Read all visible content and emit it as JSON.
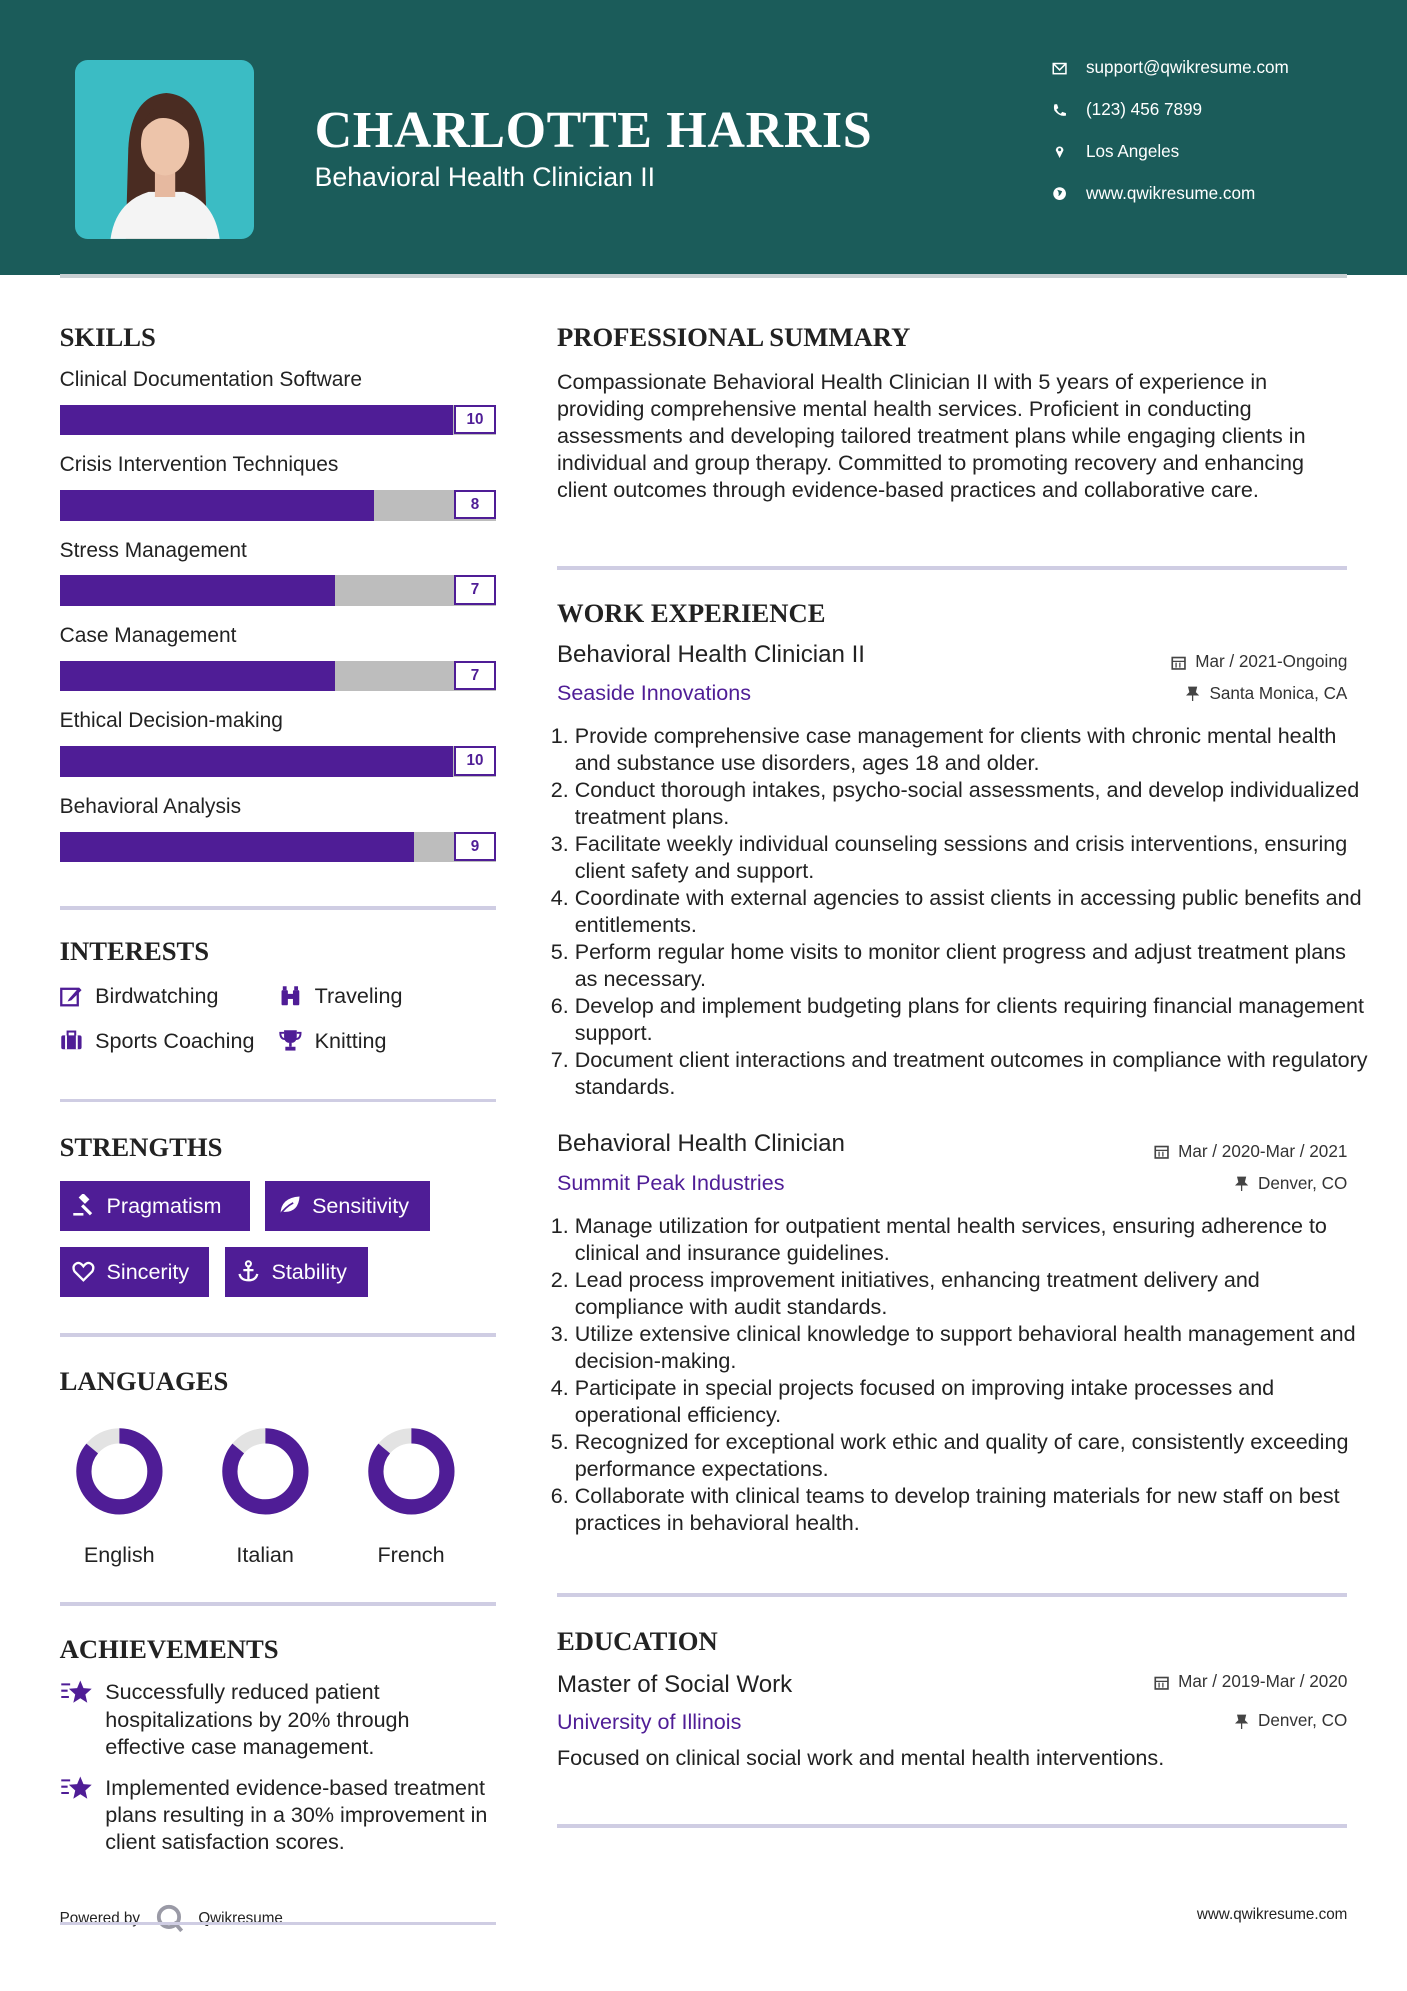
{
  "colors": {
    "header": "#1b5c5a",
    "accent": "#4f1d96",
    "photo_bg": "#3bbcc4"
  },
  "header": {
    "name": "CHARLOTTE HARRIS",
    "title": "Behavioral Health Clinician II",
    "contacts": [
      {
        "icon": "envelope-icon",
        "text": "support@qwikresume.com"
      },
      {
        "icon": "phone-icon",
        "text": "(123) 456 7899"
      },
      {
        "icon": "map-pin-icon",
        "text": "Los Angeles"
      },
      {
        "icon": "globe-icon",
        "text": "www.qwikresume.com"
      }
    ]
  },
  "skills": {
    "heading": "SKILLS",
    "items": [
      {
        "label": "Clinical Documentation Software",
        "value": 10,
        "max": 10
      },
      {
        "label": "Crisis Intervention Techniques",
        "value": 8,
        "max": 10
      },
      {
        "label": "Stress Management",
        "value": 7,
        "max": 10
      },
      {
        "label": "Case Management",
        "value": 7,
        "max": 10
      },
      {
        "label": "Ethical Decision-making",
        "value": 10,
        "max": 10
      },
      {
        "label": "Behavioral Analysis",
        "value": 9,
        "max": 10
      }
    ]
  },
  "interests": {
    "heading": "INTERESTS",
    "items": [
      {
        "label": "Birdwatching",
        "icon": "edit-icon"
      },
      {
        "label": "Traveling",
        "icon": "binoculars-icon"
      },
      {
        "label": "Sports Coaching",
        "icon": "briefcase-icon"
      },
      {
        "label": "Knitting",
        "icon": "trophy-icon"
      }
    ]
  },
  "strengths": {
    "heading": "STRENGTHS",
    "items": [
      {
        "label": "Pragmatism",
        "icon": "gavel-icon"
      },
      {
        "label": "Sensitivity",
        "icon": "leaf-icon"
      },
      {
        "label": "Sincerity",
        "icon": "heart-icon"
      },
      {
        "label": "Stability",
        "icon": "anchor-icon"
      }
    ]
  },
  "languages": {
    "heading": "LANGUAGES",
    "items": [
      {
        "label": "English",
        "level": 0.86
      },
      {
        "label": "Italian",
        "level": 0.86
      },
      {
        "label": "French",
        "level": 0.86
      }
    ]
  },
  "achievements": {
    "heading": "ACHIEVEMENTS",
    "items": [
      "Successfully reduced patient hospitalizations by 20% through effective case management.",
      "Implemented evidence-based treatment plans resulting in a 30% improvement in client satisfaction scores."
    ]
  },
  "summary": {
    "heading": "PROFESSIONAL SUMMARY",
    "text": "Compassionate Behavioral Health Clinician II with 5 years of experience in providing comprehensive mental health services. Proficient in conducting assessments and developing tailored treatment plans while engaging clients in individual and group therapy. Committed to promoting recovery and enhancing client outcomes through evidence-based practices and collaborative care."
  },
  "experience": {
    "heading": "WORK EXPERIENCE",
    "jobs": [
      {
        "title": "Behavioral Health Clinician II",
        "company": "Seaside Innovations",
        "date": "Mar / 2021-Ongoing",
        "location": "Santa Monica, CA",
        "bullets": [
          "Provide comprehensive case management for clients with chronic mental health and substance use disorders, ages 18 and older.",
          "Conduct thorough intakes, psycho-social assessments, and develop individualized treatment plans.",
          "Facilitate weekly individual counseling sessions and crisis interventions, ensuring client safety and support.",
          "Coordinate with external agencies to assist clients in accessing public benefits and entitlements.",
          "Perform regular home visits to monitor client progress and adjust treatment plans as necessary.",
          "Develop and implement budgeting plans for clients requiring financial management support.",
          "Document client interactions and treatment outcomes in compliance with regulatory standards."
        ]
      },
      {
        "title": "Behavioral Health Clinician",
        "company": "Summit Peak Industries",
        "date": "Mar / 2020-Mar / 2021",
        "location": "Denver, CO",
        "bullets": [
          "Manage utilization for outpatient mental health services, ensuring adherence to clinical and insurance guidelines.",
          "Lead process improvement initiatives, enhancing treatment delivery and compliance with audit standards.",
          "Utilize extensive clinical knowledge to support behavioral health management and decision-making.",
          "Participate in special projects focused on improving intake processes and operational efficiency.",
          "Recognized for exceptional work ethic and quality of care, consistently exceeding performance expectations.",
          "Collaborate with clinical teams to develop training materials for new staff on best practices in behavioral health."
        ]
      }
    ]
  },
  "education": {
    "heading": "EDUCATION",
    "degree": "Master of Social Work",
    "school": "University of Illinois",
    "date": "Mar / 2019-Mar / 2020",
    "location": "Denver, CO",
    "description": "Focused on clinical social work and mental health interventions."
  },
  "footer": {
    "powered_by": "Powered by",
    "brand": "Qwikresume",
    "site": "www.qwikresume.com"
  }
}
